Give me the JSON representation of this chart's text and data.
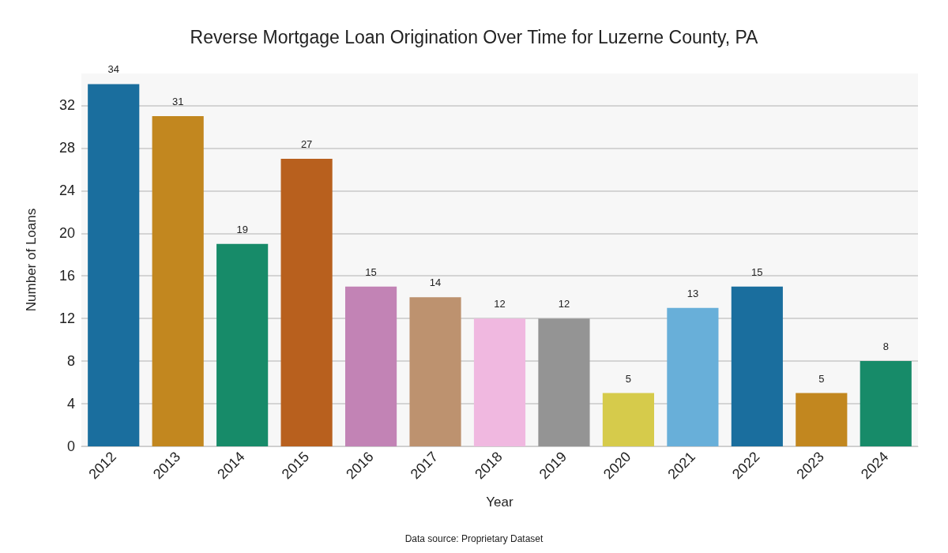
{
  "chart_data": {
    "type": "bar",
    "title": "Reverse Mortgage Loan Origination Over Time for Luzerne County, PA",
    "xlabel": "Year",
    "ylabel": "Number of Loans",
    "categories": [
      "2012",
      "2013",
      "2014",
      "2015",
      "2016",
      "2017",
      "2018",
      "2019",
      "2020",
      "2021",
      "2022",
      "2023",
      "2024"
    ],
    "values": [
      34,
      31,
      19,
      27,
      15,
      14,
      12,
      12,
      5,
      13,
      15,
      5,
      8
    ],
    "colors": [
      "#1a6e9e",
      "#c2871f",
      "#178b69",
      "#b8601e",
      "#c283b5",
      "#bd926f",
      "#f0b8e0",
      "#949494",
      "#d6cb4b",
      "#68afd9",
      "#1a6e9e",
      "#c2871f",
      "#178b69"
    ],
    "ylim": [
      0,
      35
    ],
    "yticks": [
      0,
      4,
      8,
      12,
      16,
      20,
      24,
      28,
      32
    ],
    "grid": "y",
    "data_labels": true,
    "annotations": [
      "Data source: Proprietary Dataset"
    ]
  }
}
